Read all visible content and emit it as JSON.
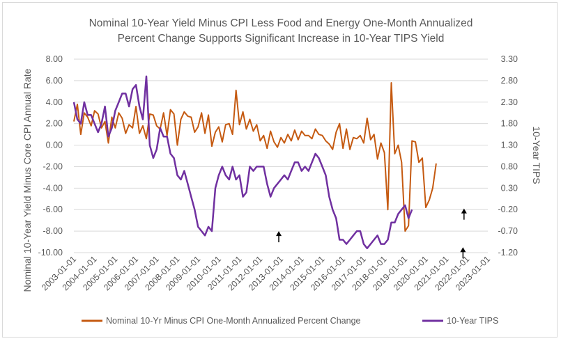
{
  "chart_data": {
    "type": "line",
    "title_line1": "Nominal 10-Year Yield Minus CPI Less Food and Energy One-Month Annualized",
    "title_line2": "Percent Change Supports Significant Increase in 10-Year TIPS Yield",
    "ylabel_left": "Nominal 10-Year Yield Minus Core CPI Annual Rate",
    "ylabel_right": "10-Year TIPS",
    "ylim_left": [
      -10,
      8
    ],
    "ylim_right": [
      -1.2,
      3.3
    ],
    "left_ticks": [
      "8.00",
      "6.00",
      "4.00",
      "2.00",
      "0.00",
      "-2.00",
      "-4.00",
      "-6.00",
      "-8.00",
      "-10.00"
    ],
    "right_ticks": [
      "3.30",
      "2.80",
      "2.30",
      "1.80",
      "1.30",
      "0.80",
      "0.30",
      "-0.20",
      "-0.70",
      "-1.20"
    ],
    "x_ticks": [
      "2003-01-01",
      "2004-01-01",
      "2005-01-01",
      "2006-01-01",
      "2007-01-01",
      "2008-01-01",
      "2009-01-01",
      "2010-01-01",
      "2011-01-01",
      "2012-01-01",
      "2013-01-01",
      "2014-01-01",
      "2015-01-01",
      "2016-01-01",
      "2017-01-01",
      "2018-01-01",
      "2019-01-01",
      "2020-01-01",
      "2021-01-01",
      "2022-01-01",
      "2023-01-01"
    ],
    "colors": {
      "series1": "#c55a11",
      "series2": "#7030a0",
      "grid": "#d9d9d9"
    },
    "grid": true,
    "legend_position": "bottom",
    "series": [
      {
        "name": "Nominal 10-Yr Minus CPI One-Month Annualized Percent Change",
        "axis": "left",
        "x_start": 2003.0,
        "x_step": 0.1667,
        "values": [
          2.2,
          3.8,
          1.0,
          3.0,
          2.6,
          1.8,
          3.2,
          2.9,
          1.6,
          2.2,
          0.2,
          2.6,
          1.6,
          3.0,
          2.5,
          1.1,
          1.9,
          1.6,
          3.6,
          1.1,
          1.8,
          0.6,
          2.9,
          2.8,
          1.8,
          1.5,
          3.0,
          0.9,
          3.3,
          2.9,
          0.0,
          2.4,
          3.1,
          2.7,
          2.6,
          1.2,
          1.7,
          3.0,
          1.1,
          2.8,
          -0.1,
          1.2,
          1.7,
          0.3,
          1.9,
          2.0,
          1.0,
          5.1,
          1.9,
          3.1,
          1.5,
          2.4,
          1.3,
          1.9,
          0.4,
          0.9,
          -0.3,
          1.3,
          0.3,
          -0.2,
          0.7,
          0.2,
          1.0,
          0.4,
          1.4,
          0.5,
          1.3,
          0.9,
          0.9,
          0.6,
          1.5,
          1.0,
          0.9,
          0.4,
          0.1,
          -0.4,
          1.2,
          2.0,
          -0.3,
          1.5,
          -0.4,
          0.7,
          0.6,
          0.9,
          0.2,
          2.5,
          0.5,
          1.0,
          -1.3,
          0.2,
          -0.7,
          -6.0,
          5.8,
          -0.8,
          0.0,
          -1.6,
          -8.0,
          -7.5,
          0.4,
          0.3,
          -1.6,
          -1.2,
          -5.8,
          -5.1,
          -4.0,
          -1.7
        ]
      },
      {
        "name": "10-Year TIPS",
        "axis": "right",
        "x_start": 2003.0,
        "x_step": 0.1667,
        "values": [
          2.3,
          1.9,
          1.8,
          2.3,
          2.0,
          2.0,
          1.8,
          1.6,
          1.8,
          2.2,
          1.5,
          1.7,
          2.1,
          2.3,
          2.5,
          2.5,
          2.2,
          2.6,
          2.7,
          2.2,
          1.9,
          2.9,
          1.3,
          1.0,
          1.2,
          1.7,
          1.5,
          1.5,
          1.1,
          1.0,
          0.6,
          0.5,
          0.7,
          0.4,
          0.1,
          -0.2,
          -0.6,
          -0.7,
          -0.8,
          -0.6,
          -0.7,
          0.3,
          0.6,
          0.8,
          0.6,
          0.5,
          0.8,
          0.5,
          0.6,
          0.1,
          0.2,
          0.8,
          0.7,
          0.8,
          0.8,
          0.8,
          0.4,
          0.1,
          0.3,
          0.4,
          0.5,
          0.6,
          0.5,
          0.7,
          0.9,
          0.9,
          0.7,
          0.8,
          0.7,
          0.9,
          1.1,
          1.0,
          0.8,
          0.6,
          0.1,
          -0.2,
          -0.4,
          -0.9,
          -0.9,
          -1.0,
          -0.9,
          -0.8,
          -0.7,
          -0.7,
          -1.0,
          -1.1,
          -1.0,
          -0.9,
          -0.8,
          -1.0,
          -1.0,
          -0.9,
          -0.5,
          -0.5,
          -0.3,
          -0.2,
          -0.1,
          -0.4,
          -0.2
        ]
      }
    ],
    "annotations": [
      {
        "type": "arrow",
        "x": 2012.9,
        "y_left": -8.0
      },
      {
        "type": "arrow",
        "x": 2021.85,
        "y_left": -5.9
      },
      {
        "type": "arrow",
        "x": 2021.8,
        "y_left": -9.5
      }
    ]
  }
}
